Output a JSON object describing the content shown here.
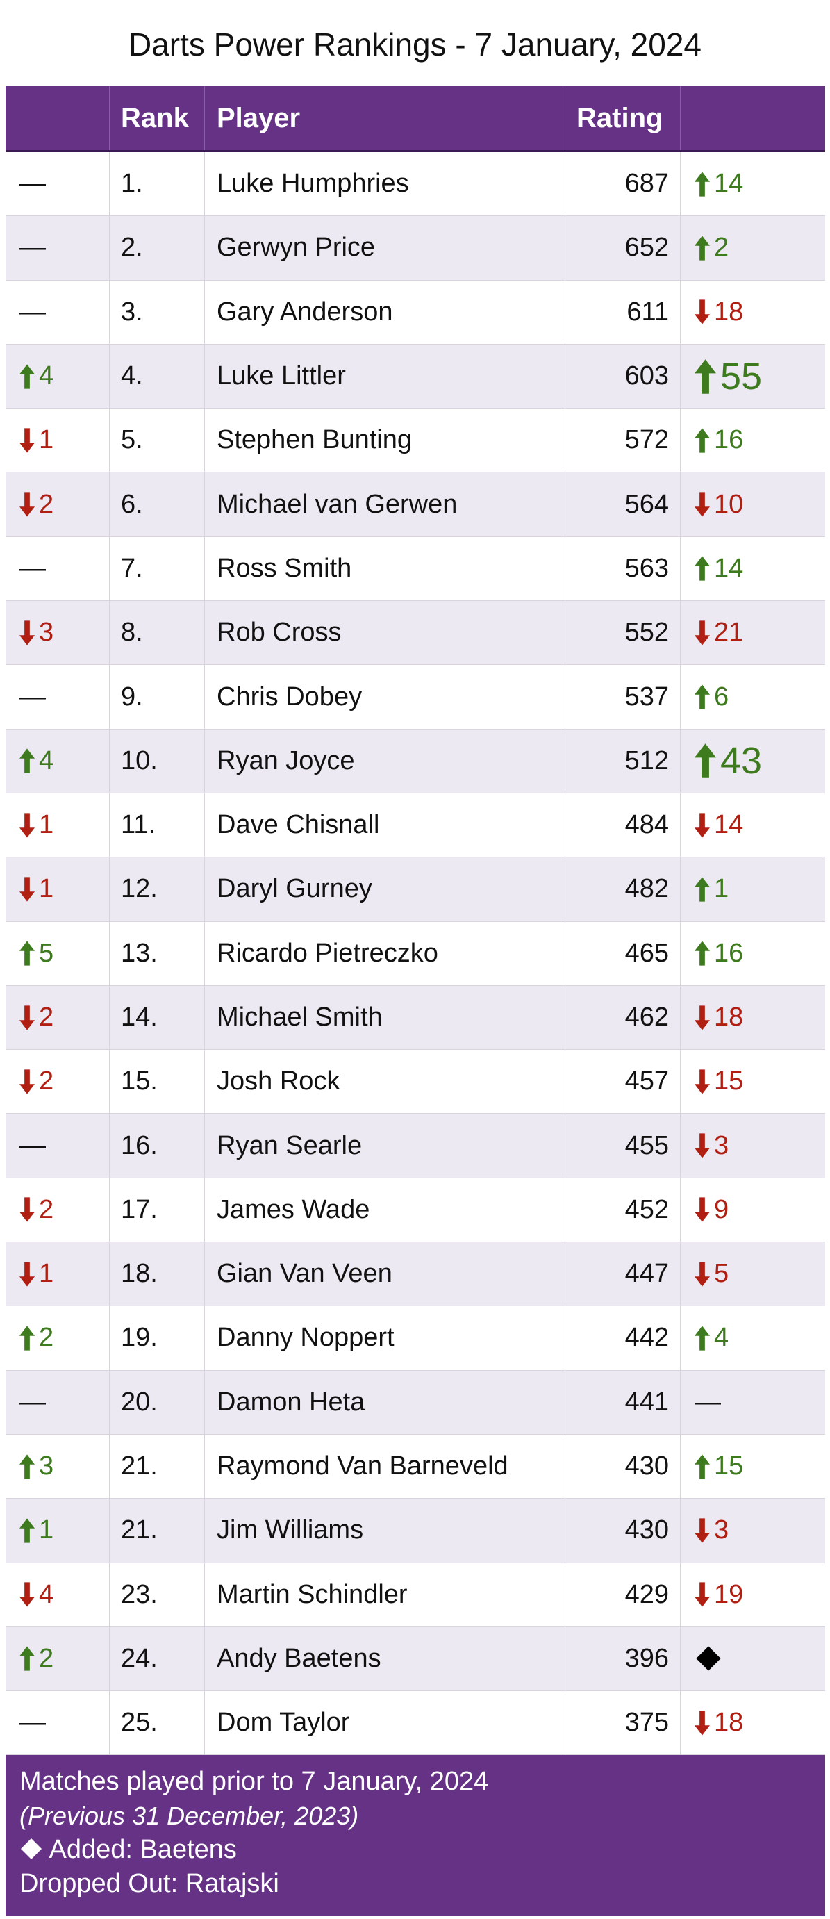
{
  "title": "Darts Power Rankings - 7 January, 2024",
  "header": {
    "col_move": "",
    "col_rank": "Rank",
    "col_player": "Player",
    "col_rating": "Rating",
    "col_change": ""
  },
  "rows": [
    {
      "move_dir": "none",
      "move": "",
      "rank": "1.",
      "player": "Luke Humphries",
      "rating": "687",
      "chg_dir": "up",
      "chg": "14",
      "big": false
    },
    {
      "move_dir": "none",
      "move": "",
      "rank": "2.",
      "player": "Gerwyn Price",
      "rating": "652",
      "chg_dir": "up",
      "chg": "2",
      "big": false
    },
    {
      "move_dir": "none",
      "move": "",
      "rank": "3.",
      "player": "Gary Anderson",
      "rating": "611",
      "chg_dir": "down",
      "chg": "18",
      "big": false
    },
    {
      "move_dir": "up",
      "move": "4",
      "rank": "4.",
      "player": "Luke Littler",
      "rating": "603",
      "chg_dir": "up",
      "chg": "55",
      "big": true
    },
    {
      "move_dir": "down",
      "move": "1",
      "rank": "5.",
      "player": "Stephen Bunting",
      "rating": "572",
      "chg_dir": "up",
      "chg": "16",
      "big": false
    },
    {
      "move_dir": "down",
      "move": "2",
      "rank": "6.",
      "player": "Michael van Gerwen",
      "rating": "564",
      "chg_dir": "down",
      "chg": "10",
      "big": false
    },
    {
      "move_dir": "none",
      "move": "",
      "rank": "7.",
      "player": "Ross Smith",
      "rating": "563",
      "chg_dir": "up",
      "chg": "14",
      "big": false
    },
    {
      "move_dir": "down",
      "move": "3",
      "rank": "8.",
      "player": "Rob Cross",
      "rating": "552",
      "chg_dir": "down",
      "chg": "21",
      "big": false
    },
    {
      "move_dir": "none",
      "move": "",
      "rank": "9.",
      "player": "Chris Dobey",
      "rating": "537",
      "chg_dir": "up",
      "chg": "6",
      "big": false
    },
    {
      "move_dir": "up",
      "move": "4",
      "rank": "10.",
      "player": "Ryan Joyce",
      "rating": "512",
      "chg_dir": "up",
      "chg": "43",
      "big": true
    },
    {
      "move_dir": "down",
      "move": "1",
      "rank": "11.",
      "player": "Dave Chisnall",
      "rating": "484",
      "chg_dir": "down",
      "chg": "14",
      "big": false
    },
    {
      "move_dir": "down",
      "move": "1",
      "rank": "12.",
      "player": "Daryl Gurney",
      "rating": "482",
      "chg_dir": "up",
      "chg": "1",
      "big": false
    },
    {
      "move_dir": "up",
      "move": "5",
      "rank": "13.",
      "player": "Ricardo Pietreczko",
      "rating": "465",
      "chg_dir": "up",
      "chg": "16",
      "big": false
    },
    {
      "move_dir": "down",
      "move": "2",
      "rank": "14.",
      "player": "Michael Smith",
      "rating": "462",
      "chg_dir": "down",
      "chg": "18",
      "big": false
    },
    {
      "move_dir": "down",
      "move": "2",
      "rank": "15.",
      "player": "Josh Rock",
      "rating": "457",
      "chg_dir": "down",
      "chg": "15",
      "big": false
    },
    {
      "move_dir": "none",
      "move": "",
      "rank": "16.",
      "player": "Ryan Searle",
      "rating": "455",
      "chg_dir": "down",
      "chg": "3",
      "big": false
    },
    {
      "move_dir": "down",
      "move": "2",
      "rank": "17.",
      "player": "James Wade",
      "rating": "452",
      "chg_dir": "down",
      "chg": "9",
      "big": false
    },
    {
      "move_dir": "down",
      "move": "1",
      "rank": "18.",
      "player": "Gian Van Veen",
      "rating": "447",
      "chg_dir": "down",
      "chg": "5",
      "big": false
    },
    {
      "move_dir": "up",
      "move": "2",
      "rank": "19.",
      "player": "Danny Noppert",
      "rating": "442",
      "chg_dir": "up",
      "chg": "4",
      "big": false
    },
    {
      "move_dir": "none",
      "move": "",
      "rank": "20.",
      "player": "Damon Heta",
      "rating": "441",
      "chg_dir": "none",
      "chg": "",
      "big": false
    },
    {
      "move_dir": "up",
      "move": "3",
      "rank": "21.",
      "player": "Raymond Van Barneveld",
      "rating": "430",
      "chg_dir": "up",
      "chg": "15",
      "big": false
    },
    {
      "move_dir": "up",
      "move": "1",
      "rank": "21.",
      "player": "Jim Williams",
      "rating": "430",
      "chg_dir": "down",
      "chg": "3",
      "big": false
    },
    {
      "move_dir": "down",
      "move": "4",
      "rank": "23.",
      "player": "Martin Schindler",
      "rating": "429",
      "chg_dir": "down",
      "chg": "19",
      "big": false
    },
    {
      "move_dir": "up",
      "move": "2",
      "rank": "24.",
      "player": "Andy Baetens",
      "rating": "396",
      "chg_dir": "new",
      "chg": "",
      "big": false
    },
    {
      "move_dir": "none",
      "move": "",
      "rank": "25.",
      "player": "Dom Taylor",
      "rating": "375",
      "chg_dir": "down",
      "chg": "18",
      "big": false
    }
  ],
  "footer": {
    "line1": "Matches played prior to 7 January, 2024",
    "line2": "(Previous 31 December, 2023)",
    "line3": "Added: Baetens",
    "line4": "Dropped Out:  Ratajski"
  },
  "colors": {
    "header_bg": "#653286",
    "up": "#3e7a1e",
    "down": "#b01f12",
    "alt_row": "#ede9f2"
  },
  "icons": {
    "up": "arrow-up-icon",
    "down": "arrow-down-icon",
    "none": "dash",
    "new": "diamond-icon"
  }
}
